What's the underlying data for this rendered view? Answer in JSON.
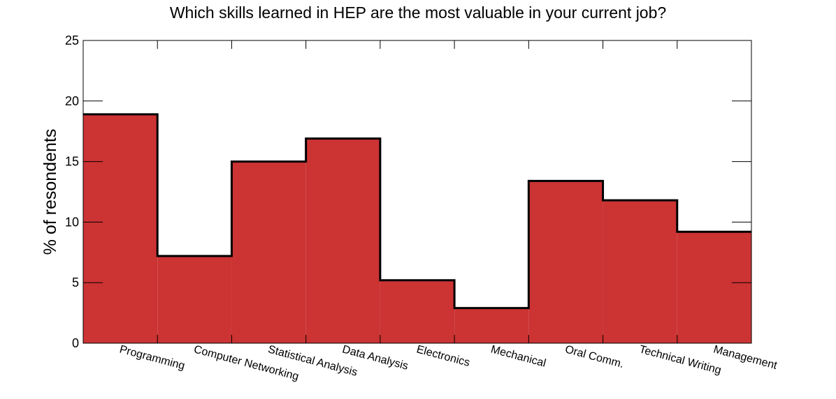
{
  "chart_data": {
    "type": "bar",
    "title": "Which skills learned in HEP are the most valuable in your current job?",
    "y_label": "% of resondents",
    "categories": [
      "Programming",
      "Computer Networking",
      "Statistical Analysis",
      "Data Analysis",
      "Electronics",
      "Mechanical",
      "Oral Comm.",
      "Technical Writing",
      "Management"
    ],
    "values": [
      18.9,
      7.2,
      15.0,
      16.9,
      5.2,
      2.9,
      13.4,
      11.8,
      9.2
    ],
    "color": "#cc3333",
    "ylim": [
      0,
      25
    ],
    "yticks": [
      0,
      5,
      10,
      15,
      20,
      25
    ]
  }
}
